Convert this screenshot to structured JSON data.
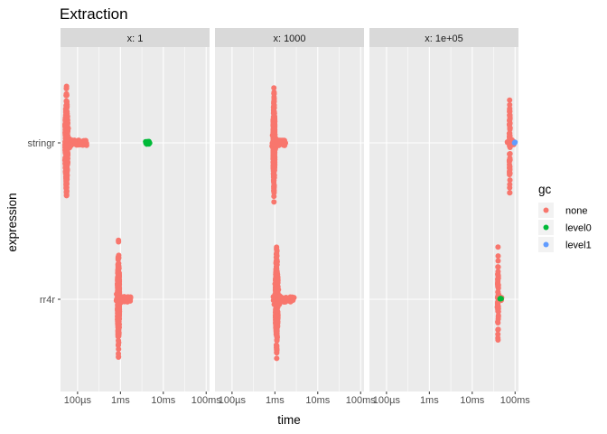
{
  "chart_data": {
    "type": "scatter",
    "title": "Extraction",
    "xlabel": "time",
    "ylabel": "expression",
    "x_scale": "log10",
    "x_unit": "seconds",
    "xlim": [
      4e-05,
      0.12
    ],
    "x_ticks": [
      {
        "value": 0.0001,
        "label": "100µs"
      },
      {
        "value": 0.001,
        "label": "1ms"
      },
      {
        "value": 0.01,
        "label": "10ms"
      },
      {
        "value": 0.1,
        "label": "100ms"
      }
    ],
    "categories": [
      "stringr",
      "rr4r"
    ],
    "legend": {
      "title": "gc",
      "position": "right",
      "entries": [
        {
          "name": "none",
          "color": "#F8766D"
        },
        {
          "name": "level0",
          "color": "#00BA38"
        },
        {
          "name": "level1",
          "color": "#619CFF"
        }
      ]
    },
    "panels": [
      {
        "label": "x: 1",
        "groups": [
          {
            "expression": "stringr",
            "gc": "none",
            "median": 5.5e-05,
            "min": 5e-05,
            "max": 0.00017,
            "count": 380
          },
          {
            "expression": "stringr",
            "gc": "level0",
            "median": 0.0045,
            "min": 0.0038,
            "max": 0.0052,
            "count": 8
          },
          {
            "expression": "rr4r",
            "gc": "none",
            "median": 0.0009,
            "min": 0.0008,
            "max": 0.0018,
            "count": 330
          }
        ]
      },
      {
        "label": "x: 1000",
        "groups": [
          {
            "expression": "stringr",
            "gc": "none",
            "median": 0.00095,
            "min": 0.00085,
            "max": 0.0018,
            "count": 320
          },
          {
            "expression": "rr4r",
            "gc": "none",
            "median": 0.0011,
            "min": 0.0009,
            "max": 0.0028,
            "count": 320
          }
        ]
      },
      {
        "label": "x: 1e+05",
        "groups": [
          {
            "expression": "stringr",
            "gc": "none",
            "median": 0.075,
            "min": 0.065,
            "max": 0.095,
            "count": 70
          },
          {
            "expression": "stringr",
            "gc": "level1",
            "median": 0.098,
            "min": 0.095,
            "max": 0.1,
            "count": 2
          },
          {
            "expression": "rr4r",
            "gc": "none",
            "median": 0.04,
            "min": 0.036,
            "max": 0.052,
            "count": 60
          },
          {
            "expression": "rr4r",
            "gc": "level0",
            "median": 0.047,
            "min": 0.044,
            "max": 0.05,
            "count": 3
          }
        ]
      }
    ]
  }
}
